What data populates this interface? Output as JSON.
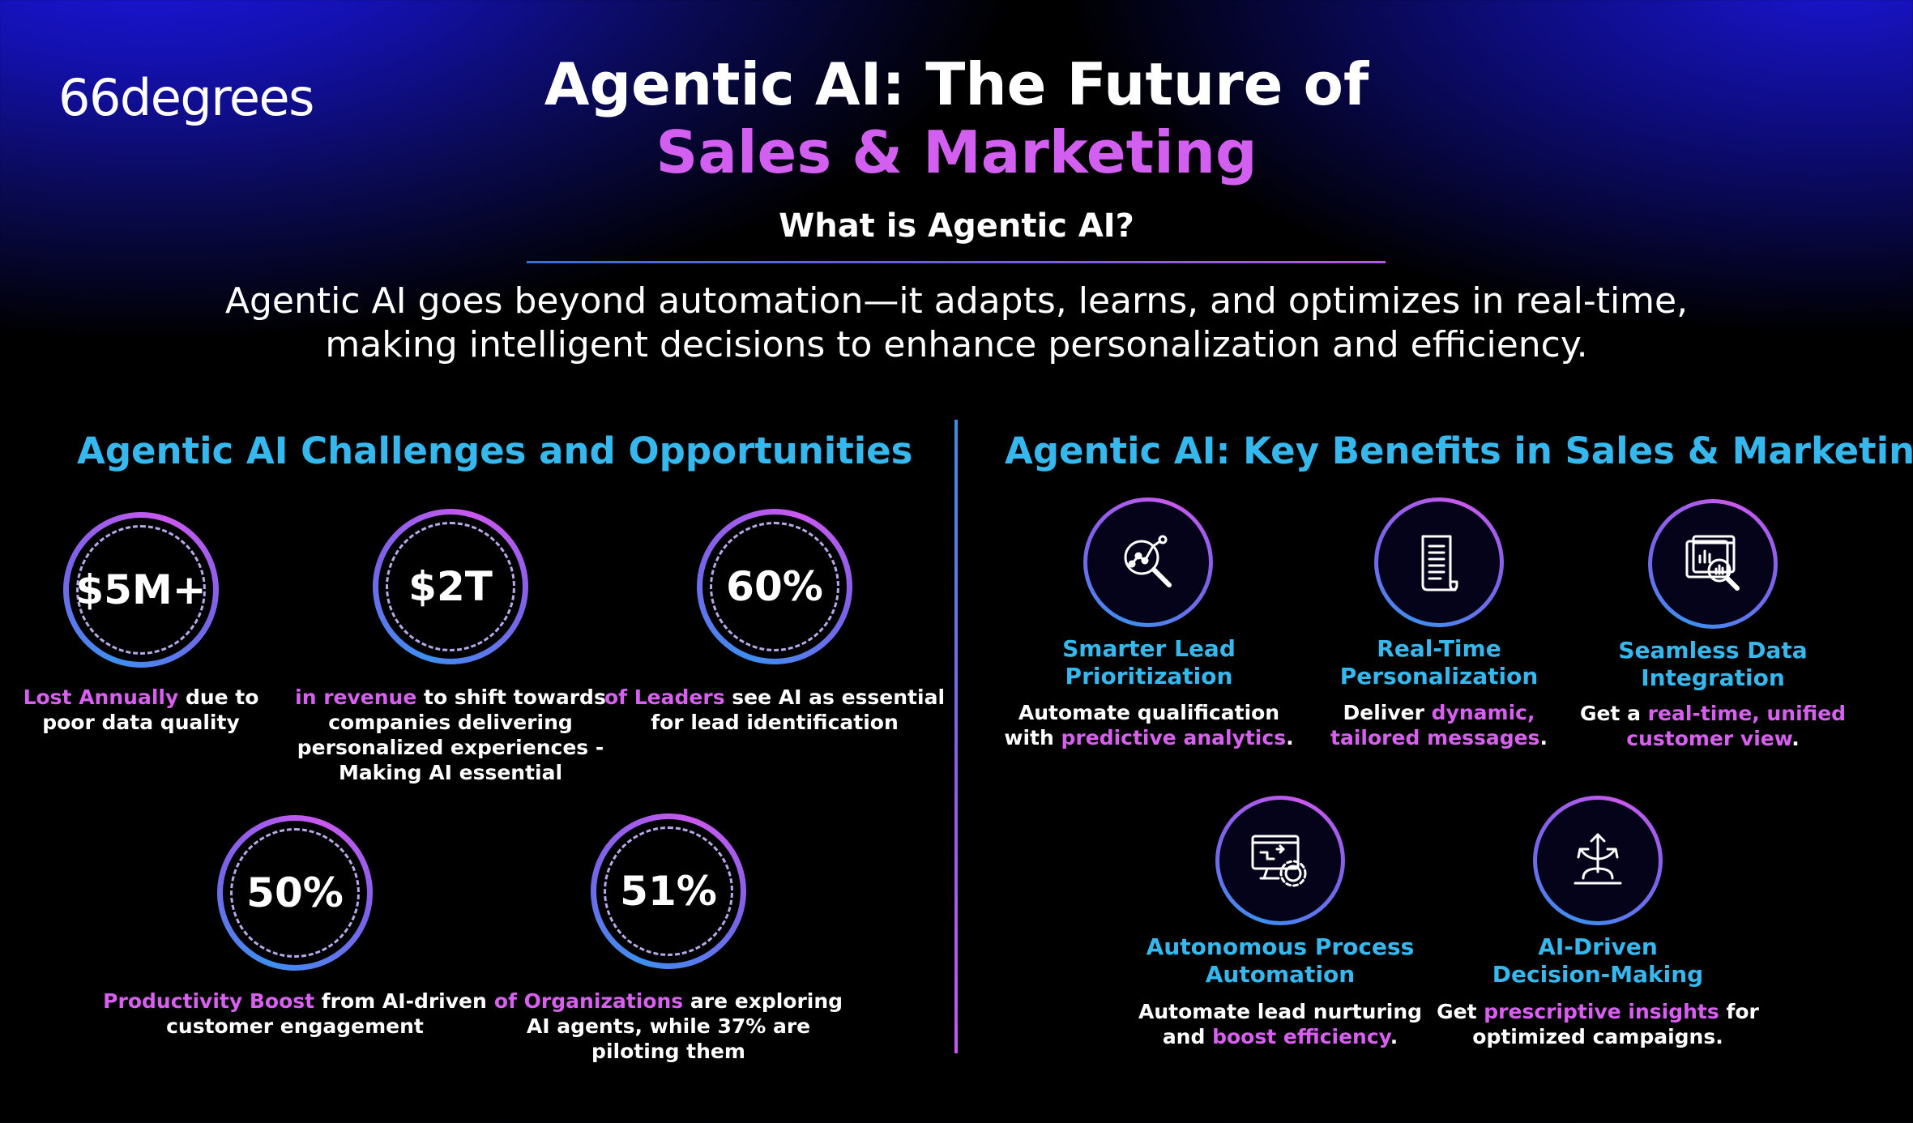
{
  "logo": {
    "text": "66degrees"
  },
  "header": {
    "title_line1": "Agentic AI: The Future of",
    "title_line2": "Sales & Marketing",
    "subtitle": "What is Agentic AI?",
    "intro_line1": "Agentic AI goes beyond automation—it adapts, learns, and optimizes in real-time,",
    "intro_line2": "making intelligent decisions to enhance personalization and efficiency."
  },
  "colors": {
    "accent_pink": "#d85ff0",
    "accent_cyan": "#35b8ee",
    "background": "#000000",
    "glow_blue": "#1e17e6"
  },
  "left": {
    "title": "Agentic AI Challenges and Opportunities",
    "stats": [
      {
        "value": "$5M+",
        "highlight": "Lost Annually",
        "lines": [
          " due to",
          "poor data quality"
        ]
      },
      {
        "value": "$2T",
        "highlight": "in revenue",
        "lines": [
          " to shift towards",
          "companies delivering",
          "personalized experiences -",
          "Making AI essential"
        ]
      },
      {
        "value": "60%",
        "highlight": "of Leaders",
        "lines": [
          " see AI as essential",
          "for lead identification"
        ]
      },
      {
        "value": "50%",
        "highlight": "Productivity Boost",
        "lines": [
          " from AI-driven",
          "customer engagement"
        ]
      },
      {
        "value": "51%",
        "highlight": "of Organizations",
        "lines": [
          " are exploring",
          "AI agents, while 37% are",
          "piloting them"
        ]
      }
    ]
  },
  "right": {
    "title": "Agentic AI: Key Benefits in Sales & Marketing",
    "benefits": [
      {
        "icon": "analytics-magnifier-icon",
        "title1": "Smarter Lead",
        "title2": "Prioritization",
        "desc1_pre": "Automate qualification",
        "desc2_pre": "with ",
        "desc2_hl": "predictive analytics",
        "desc2_post": "."
      },
      {
        "icon": "document-icon",
        "title1": "Real-Time",
        "title2": "Personalization",
        "desc1_pre": "Deliver ",
        "desc1_hl": "dynamic,",
        "desc2_hl": "tailored messages",
        "desc2_post": "."
      },
      {
        "icon": "data-search-icon",
        "title1": "Seamless Data",
        "title2": "Integration",
        "desc1_pre": "Get a ",
        "desc1_hl": "real-time, unified",
        "desc2_hl": "customer view",
        "desc2_post": "."
      },
      {
        "icon": "monitor-gear-icon",
        "title1": "Autonomous Process",
        "title2": "Automation",
        "desc1_pre": "Automate lead nurturing",
        "desc2_pre": "and ",
        "desc2_hl": "boost efficiency",
        "desc2_post": "."
      },
      {
        "icon": "decision-arrows-icon",
        "title1": "AI-Driven",
        "title2": "Decision-Making",
        "desc1_pre": "Get ",
        "desc1_hl": "prescriptive insights",
        "desc1_post": " for",
        "desc2_pre": "optimized campaigns."
      }
    ]
  }
}
